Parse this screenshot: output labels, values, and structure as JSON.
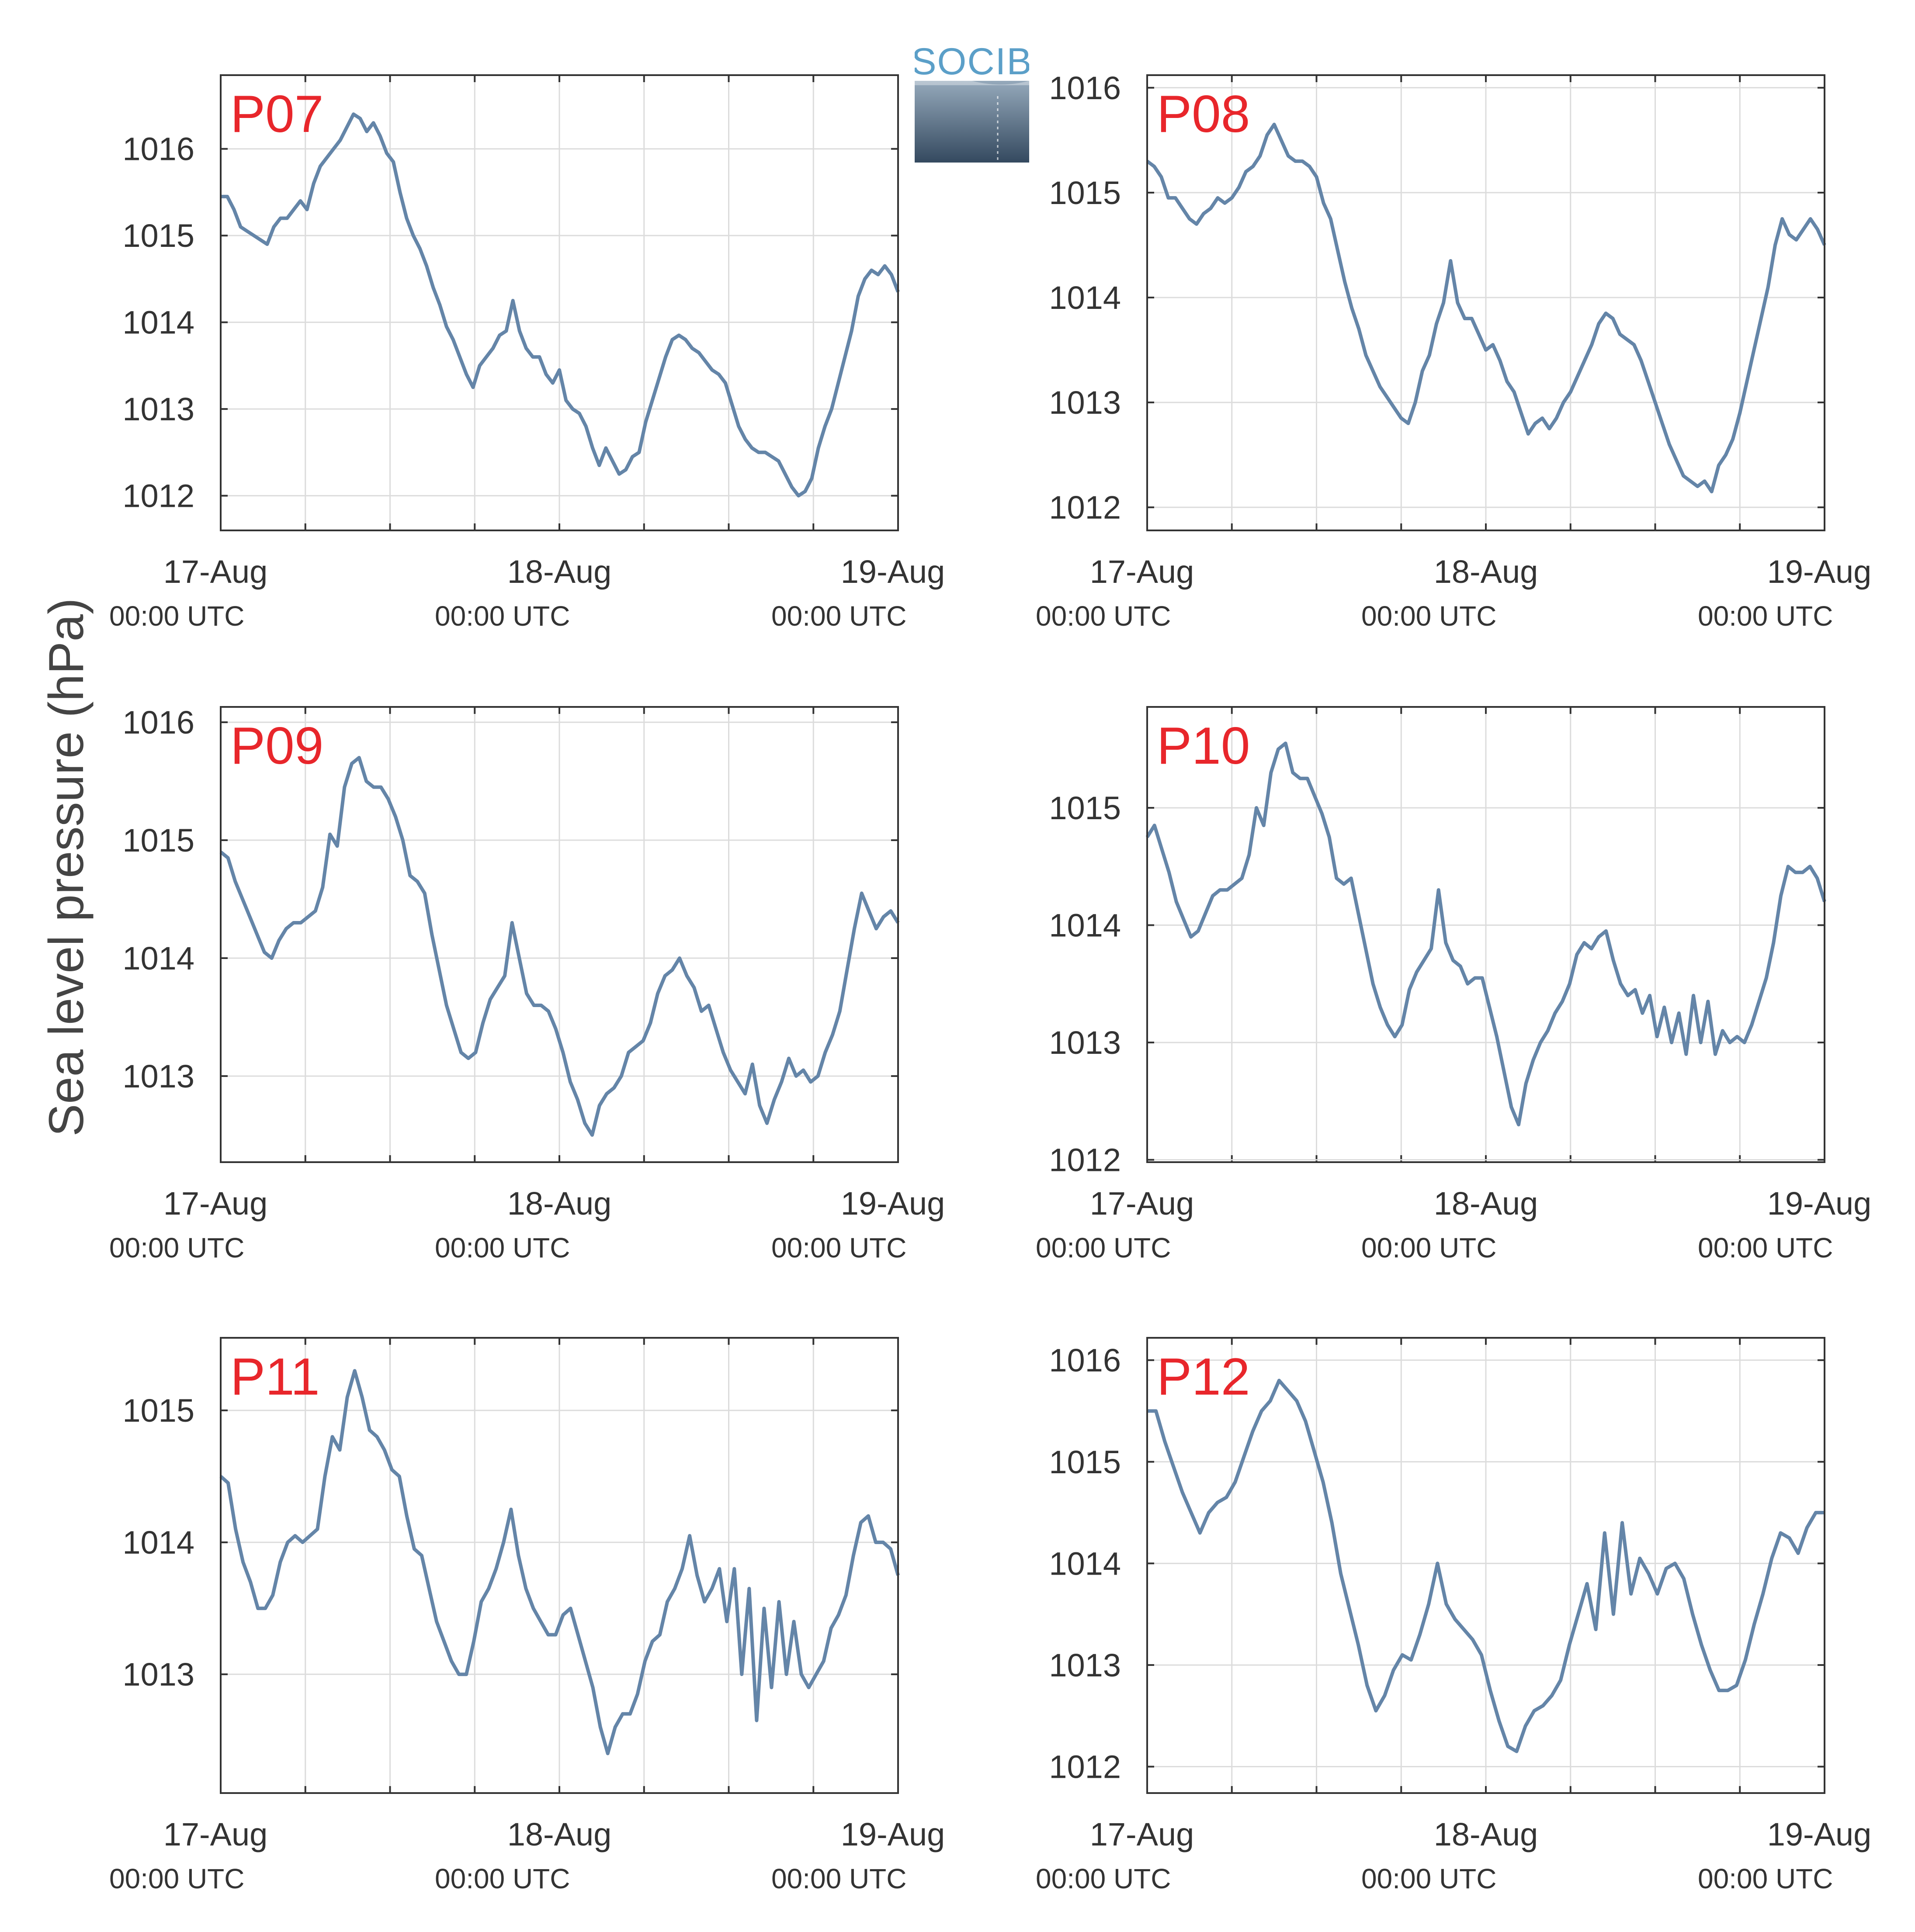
{
  "figure": {
    "ylabel": "Sea level pressure (hPa)",
    "logo": {
      "text": "SOCIB",
      "colors": {
        "text": "#5b9fc8",
        "top": "#95a9bb",
        "bottom": "#34495f"
      }
    },
    "colors": {
      "line": "#6485a8",
      "title": "#e8262b",
      "grid": "#dcdcdc",
      "axis": "#333333",
      "text": "#333333"
    },
    "time_labels": {
      "dates": [
        "17-Aug",
        "18-Aug",
        "19-Aug"
      ],
      "times": [
        "00:00 UTC",
        "00:00 UTC",
        "00:00 UTC"
      ]
    }
  },
  "chart_data": [
    {
      "type": "line",
      "title": "P07",
      "xlim": [
        0,
        48
      ],
      "ylim": [
        1011.6,
        1016.85
      ],
      "yticks": [
        1012,
        1013,
        1014,
        1015,
        1016
      ],
      "y": [
        1015.45,
        1015.45,
        1015.3,
        1015.1,
        1015.05,
        1015.0,
        1014.95,
        1014.9,
        1015.1,
        1015.2,
        1015.2,
        1015.3,
        1015.4,
        1015.3,
        1015.6,
        1015.8,
        1015.9,
        1016.0,
        1016.1,
        1016.25,
        1016.4,
        1016.35,
        1016.2,
        1016.3,
        1016.15,
        1015.95,
        1015.85,
        1015.5,
        1015.2,
        1015.0,
        1014.85,
        1014.65,
        1014.4,
        1014.2,
        1013.95,
        1013.8,
        1013.6,
        1013.4,
        1013.25,
        1013.5,
        1013.6,
        1013.7,
        1013.85,
        1013.9,
        1014.25,
        1013.9,
        1013.7,
        1013.6,
        1013.6,
        1013.4,
        1013.3,
        1013.45,
        1013.1,
        1013.0,
        1012.95,
        1012.8,
        1012.55,
        1012.35,
        1012.55,
        1012.4,
        1012.25,
        1012.3,
        1012.45,
        1012.5,
        1012.85,
        1013.1,
        1013.35,
        1013.6,
        1013.8,
        1013.85,
        1013.8,
        1013.7,
        1013.65,
        1013.55,
        1013.45,
        1013.4,
        1013.3,
        1013.05,
        1012.8,
        1012.65,
        1012.55,
        1012.5,
        1012.5,
        1012.45,
        1012.4,
        1012.25,
        1012.1,
        1012.0,
        1012.05,
        1012.2,
        1012.55,
        1012.8,
        1013.0,
        1013.3,
        1013.6,
        1013.9,
        1014.3,
        1014.5,
        1014.6,
        1014.55,
        1014.65,
        1014.55,
        1014.35
      ]
    },
    {
      "type": "line",
      "title": "P08",
      "xlim": [
        0,
        48
      ],
      "ylim": [
        1011.78,
        1016.12
      ],
      "yticks": [
        1012,
        1013,
        1014,
        1015,
        1016
      ],
      "y": [
        1015.3,
        1015.25,
        1015.15,
        1014.95,
        1014.95,
        1014.85,
        1014.75,
        1014.7,
        1014.8,
        1014.85,
        1014.95,
        1014.9,
        1014.95,
        1015.05,
        1015.2,
        1015.25,
        1015.35,
        1015.55,
        1015.65,
        1015.5,
        1015.35,
        1015.3,
        1015.3,
        1015.25,
        1015.15,
        1014.9,
        1014.75,
        1014.45,
        1014.15,
        1013.9,
        1013.7,
        1013.45,
        1013.3,
        1013.15,
        1013.05,
        1012.95,
        1012.85,
        1012.8,
        1013.0,
        1013.3,
        1013.45,
        1013.75,
        1013.95,
        1014.35,
        1013.95,
        1013.8,
        1013.8,
        1013.65,
        1013.5,
        1013.55,
        1013.4,
        1013.2,
        1013.1,
        1012.9,
        1012.7,
        1012.8,
        1012.85,
        1012.75,
        1012.85,
        1013.0,
        1013.1,
        1013.25,
        1013.4,
        1013.55,
        1013.75,
        1013.85,
        1013.8,
        1013.65,
        1013.6,
        1013.55,
        1013.4,
        1013.2,
        1013.0,
        1012.8,
        1012.6,
        1012.45,
        1012.3,
        1012.25,
        1012.2,
        1012.25,
        1012.15,
        1012.4,
        1012.5,
        1012.65,
        1012.9,
        1013.2,
        1013.5,
        1013.8,
        1014.1,
        1014.5,
        1014.75,
        1014.6,
        1014.55,
        1014.65,
        1014.75,
        1014.65,
        1014.5
      ]
    },
    {
      "type": "line",
      "title": "P09",
      "xlim": [
        0,
        48
      ],
      "ylim": [
        1012.27,
        1016.13
      ],
      "yticks": [
        1013,
        1014,
        1015,
        1016
      ],
      "y": [
        1014.9,
        1014.85,
        1014.65,
        1014.5,
        1014.35,
        1014.2,
        1014.05,
        1014.0,
        1014.15,
        1014.25,
        1014.3,
        1014.3,
        1014.35,
        1014.4,
        1014.6,
        1015.05,
        1014.95,
        1015.45,
        1015.65,
        1015.7,
        1015.5,
        1015.45,
        1015.45,
        1015.35,
        1015.2,
        1015.0,
        1014.7,
        1014.65,
        1014.55,
        1014.2,
        1013.9,
        1013.6,
        1013.4,
        1013.2,
        1013.15,
        1013.2,
        1013.45,
        1013.65,
        1013.75,
        1013.85,
        1014.3,
        1014.0,
        1013.7,
        1013.6,
        1013.6,
        1013.55,
        1013.4,
        1013.2,
        1012.95,
        1012.8,
        1012.6,
        1012.5,
        1012.75,
        1012.85,
        1012.9,
        1013.0,
        1013.2,
        1013.25,
        1013.3,
        1013.45,
        1013.7,
        1013.85,
        1013.9,
        1014.0,
        1013.85,
        1013.75,
        1013.55,
        1013.6,
        1013.4,
        1013.2,
        1013.05,
        1012.95,
        1012.85,
        1013.1,
        1012.75,
        1012.6,
        1012.8,
        1012.95,
        1013.15,
        1013.0,
        1013.05,
        1012.95,
        1013.0,
        1013.2,
        1013.35,
        1013.55,
        1013.9,
        1014.25,
        1014.55,
        1014.4,
        1014.25,
        1014.35,
        1014.4,
        1014.3
      ]
    },
    {
      "type": "line",
      "title": "P10",
      "xlim": [
        0,
        48
      ],
      "ylim": [
        1011.98,
        1015.86
      ],
      "yticks": [
        1012,
        1013,
        1014,
        1015
      ],
      "y": [
        1014.75,
        1014.85,
        1014.65,
        1014.45,
        1014.2,
        1014.05,
        1013.9,
        1013.95,
        1014.1,
        1014.25,
        1014.3,
        1014.3,
        1014.35,
        1014.4,
        1014.6,
        1015.0,
        1014.85,
        1015.3,
        1015.5,
        1015.55,
        1015.3,
        1015.25,
        1015.25,
        1015.1,
        1014.95,
        1014.75,
        1014.4,
        1014.35,
        1014.4,
        1014.1,
        1013.8,
        1013.5,
        1013.3,
        1013.15,
        1013.05,
        1013.15,
        1013.45,
        1013.6,
        1013.7,
        1013.8,
        1014.3,
        1013.85,
        1013.7,
        1013.65,
        1013.5,
        1013.55,
        1013.55,
        1013.3,
        1013.05,
        1012.75,
        1012.45,
        1012.3,
        1012.65,
        1012.85,
        1013.0,
        1013.1,
        1013.25,
        1013.35,
        1013.5,
        1013.75,
        1013.85,
        1013.8,
        1013.9,
        1013.95,
        1013.7,
        1013.5,
        1013.4,
        1013.45,
        1013.25,
        1013.4,
        1013.05,
        1013.3,
        1013.0,
        1013.25,
        1012.9,
        1013.4,
        1013.0,
        1013.35,
        1012.9,
        1013.1,
        1013.0,
        1013.05,
        1013.0,
        1013.15,
        1013.35,
        1013.55,
        1013.85,
        1014.25,
        1014.5,
        1014.45,
        1014.45,
        1014.5,
        1014.4,
        1014.2
      ]
    },
    {
      "type": "line",
      "title": "P11",
      "xlim": [
        0,
        48
      ],
      "ylim": [
        1012.1,
        1015.55
      ],
      "yticks": [
        1013,
        1014,
        1015
      ],
      "y": [
        1014.5,
        1014.45,
        1014.1,
        1013.85,
        1013.7,
        1013.5,
        1013.5,
        1013.6,
        1013.85,
        1014.0,
        1014.05,
        1014.0,
        1014.05,
        1014.1,
        1014.5,
        1014.8,
        1014.7,
        1015.1,
        1015.3,
        1015.1,
        1014.85,
        1014.8,
        1014.7,
        1014.55,
        1014.5,
        1014.2,
        1013.95,
        1013.9,
        1013.65,
        1013.4,
        1013.25,
        1013.1,
        1013.0,
        1013.0,
        1013.25,
        1013.55,
        1013.65,
        1013.8,
        1014.0,
        1014.25,
        1013.9,
        1013.65,
        1013.5,
        1013.4,
        1013.3,
        1013.3,
        1013.45,
        1013.5,
        1013.3,
        1013.1,
        1012.9,
        1012.6,
        1012.4,
        1012.6,
        1012.7,
        1012.7,
        1012.85,
        1013.1,
        1013.25,
        1013.3,
        1013.55,
        1013.65,
        1013.8,
        1014.05,
        1013.75,
        1013.55,
        1013.65,
        1013.8,
        1013.4,
        1013.8,
        1013.0,
        1013.65,
        1012.65,
        1013.5,
        1012.9,
        1013.55,
        1013.0,
        1013.4,
        1013.0,
        1012.9,
        1013.0,
        1013.1,
        1013.35,
        1013.45,
        1013.6,
        1013.9,
        1014.15,
        1014.2,
        1014.0,
        1014.0,
        1013.95,
        1013.75
      ]
    },
    {
      "type": "line",
      "title": "P12",
      "xlim": [
        0,
        48
      ],
      "ylim": [
        1011.74,
        1016.22
      ],
      "yticks": [
        1012,
        1013,
        1014,
        1015,
        1016
      ],
      "y": [
        1015.5,
        1015.5,
        1015.2,
        1014.95,
        1014.7,
        1014.5,
        1014.3,
        1014.5,
        1014.6,
        1014.65,
        1014.8,
        1015.05,
        1015.3,
        1015.5,
        1015.6,
        1015.8,
        1015.7,
        1015.6,
        1015.4,
        1015.1,
        1014.8,
        1014.4,
        1013.9,
        1013.55,
        1013.2,
        1012.8,
        1012.55,
        1012.7,
        1012.95,
        1013.1,
        1013.05,
        1013.3,
        1013.6,
        1014.0,
        1013.6,
        1013.45,
        1013.35,
        1013.25,
        1013.1,
        1012.75,
        1012.45,
        1012.2,
        1012.15,
        1012.4,
        1012.55,
        1012.6,
        1012.7,
        1012.85,
        1013.2,
        1013.5,
        1013.8,
        1013.35,
        1014.3,
        1013.5,
        1014.4,
        1013.7,
        1014.05,
        1013.9,
        1013.7,
        1013.95,
        1014.0,
        1013.85,
        1013.5,
        1013.2,
        1012.95,
        1012.75,
        1012.75,
        1012.8,
        1013.05,
        1013.4,
        1013.7,
        1014.05,
        1014.3,
        1014.25,
        1014.1,
        1014.35,
        1014.5,
        1014.5
      ]
    }
  ]
}
